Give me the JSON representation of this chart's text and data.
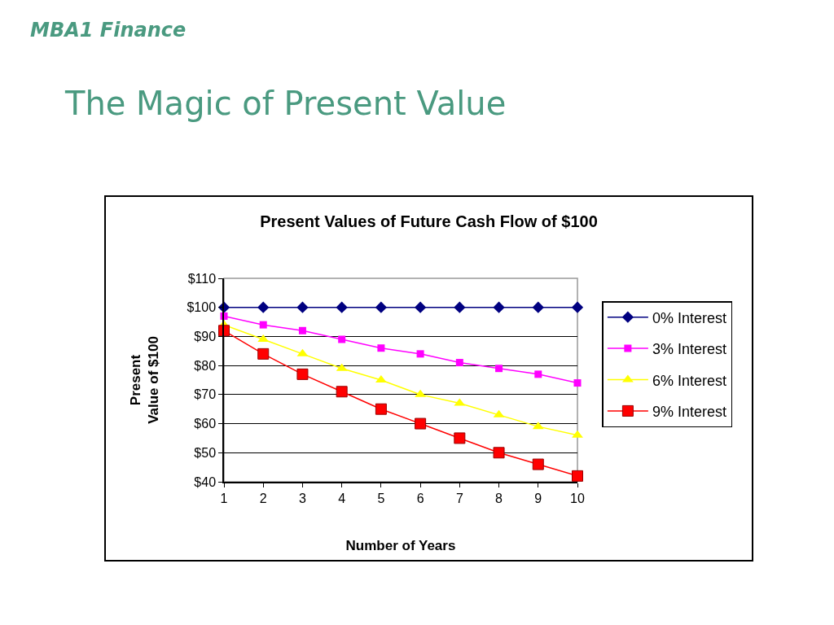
{
  "chart_data": {
    "type": "line",
    "title": "Present Values of Future Cash Flow of $100",
    "xlabel": "Number of Years",
    "ylabel": "Present\nValue of $100",
    "annotations": [
      "MBA1 Finance",
      "The Magic of Present Value"
    ],
    "x": [
      1,
      2,
      3,
      4,
      5,
      6,
      7,
      8,
      9,
      10
    ],
    "series": [
      {
        "name": "0% Interest",
        "color": "#000080",
        "marker": "diamond",
        "values": [
          100,
          100,
          100,
          100,
          100,
          100,
          100,
          100,
          100,
          100
        ]
      },
      {
        "name": "3% Interest",
        "color": "#ff00ff",
        "marker": "square",
        "values": [
          97,
          94,
          92,
          89,
          86,
          84,
          81,
          79,
          77,
          74
        ]
      },
      {
        "name": "6% Interest",
        "color": "#ffff00",
        "marker": "triangle",
        "values": [
          94,
          89,
          84,
          79,
          75,
          70,
          67,
          63,
          59,
          56
        ]
      },
      {
        "name": "9% Interest",
        "color": "#ff0000",
        "marker": "square",
        "values": [
          92,
          84,
          77,
          71,
          65,
          60,
          55,
          50,
          46,
          42
        ]
      }
    ],
    "xlim": [
      1,
      10
    ],
    "xticks": [
      1,
      2,
      3,
      4,
      5,
      6,
      7,
      8,
      9,
      10
    ],
    "ylim": [
      40,
      110
    ],
    "yticks": [
      {
        "value": 40,
        "label": "$40"
      },
      {
        "value": 50,
        "label": "$50"
      },
      {
        "value": 60,
        "label": "$60"
      },
      {
        "value": 70,
        "label": "$70"
      },
      {
        "value": 80,
        "label": "$80"
      },
      {
        "value": 90,
        "label": "$90"
      },
      {
        "value": 100,
        "label": "$100"
      },
      {
        "value": 110,
        "label": "$110"
      }
    ],
    "grid": "y",
    "legend": "right",
    "line_style": "solid"
  }
}
